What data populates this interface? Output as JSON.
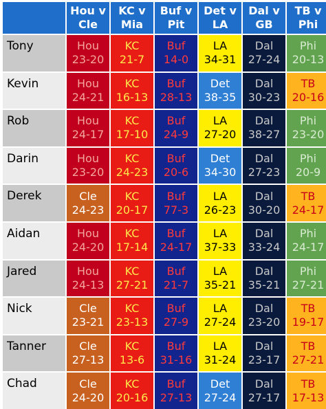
{
  "colors": {
    "header": "#1f6ec9",
    "Hou": {
      "bg": "#c0001d",
      "fg": "#f4a69b"
    },
    "Cle": {
      "bg": "#c8611f",
      "fg": "#ffffff"
    },
    "KC": {
      "bg": "#e81c14",
      "fg": "#ffe84d"
    },
    "Buf": {
      "bg": "#12248d",
      "fg": "#ff3b3b"
    },
    "LA": {
      "bg": "#ffee00",
      "fg": "#000000"
    },
    "Det": {
      "bg": "#2f7fd4",
      "fg": "#ffffff"
    },
    "Dal": {
      "bg": "#0a1a3d",
      "fg": "#c8c8c8"
    },
    "Phi": {
      "bg": "#62a34f",
      "fg": "#d9ebd2"
    },
    "TB": {
      "bg": "#ffb41f",
      "fg": "#c8001a"
    }
  },
  "headers": [
    "Hou v\nCle",
    "KC v\nMia",
    "Buf v\nPit",
    "Det v\nLA",
    "Dal v\nGB",
    "TB v\nPhi"
  ],
  "rows": [
    {
      "name": "Tony",
      "picks": [
        {
          "team": "Hou",
          "score": "23-20"
        },
        {
          "team": "KC",
          "score": "21-7"
        },
        {
          "team": "Buf",
          "score": "14-0"
        },
        {
          "team": "LA",
          "score": "34-31"
        },
        {
          "team": "Dal",
          "score": "27-24"
        },
        {
          "team": "Phi",
          "score": "20-13"
        }
      ]
    },
    {
      "name": "Kevin",
      "picks": [
        {
          "team": "Hou",
          "score": "24-21"
        },
        {
          "team": "KC",
          "score": "16-13"
        },
        {
          "team": "Buf",
          "score": "28-13"
        },
        {
          "team": "Det",
          "score": "38-35"
        },
        {
          "team": "Dal",
          "score": "30-23"
        },
        {
          "team": "TB",
          "score": "20-16"
        }
      ]
    },
    {
      "name": "Rob",
      "picks": [
        {
          "team": "Hou",
          "score": "24-17"
        },
        {
          "team": "KC",
          "score": "17-10"
        },
        {
          "team": "Buf",
          "score": "24-9"
        },
        {
          "team": "LA",
          "score": "27-20"
        },
        {
          "team": "Dal",
          "score": "38-27"
        },
        {
          "team": "Phi",
          "score": "23-20"
        }
      ]
    },
    {
      "name": "Darin",
      "picks": [
        {
          "team": "Hou",
          "score": "23-20"
        },
        {
          "team": "KC",
          "score": "24-23"
        },
        {
          "team": "Buf",
          "score": "20-6"
        },
        {
          "team": "Det",
          "score": "34-30"
        },
        {
          "team": "Dal",
          "score": "27-23"
        },
        {
          "team": "Phi",
          "score": "20-9"
        }
      ]
    },
    {
      "name": "Derek",
      "picks": [
        {
          "team": "Cle",
          "score": "24-23"
        },
        {
          "team": "KC",
          "score": "20-17"
        },
        {
          "team": "Buf",
          "score": "77-3"
        },
        {
          "team": "LA",
          "score": "26-23"
        },
        {
          "team": "Dal",
          "score": "30-20"
        },
        {
          "team": "TB",
          "score": "24-17"
        }
      ]
    },
    {
      "name": "Aidan",
      "picks": [
        {
          "team": "Hou",
          "score": "24-20"
        },
        {
          "team": "KC",
          "score": "17-14"
        },
        {
          "team": "Buf",
          "score": "24-17"
        },
        {
          "team": "LA",
          "score": "37-33"
        },
        {
          "team": "Dal",
          "score": "33-24"
        },
        {
          "team": "Phi",
          "score": "24-17"
        }
      ]
    },
    {
      "name": "Jared",
      "picks": [
        {
          "team": "Hou",
          "score": "24-13"
        },
        {
          "team": "KC",
          "score": "27-21"
        },
        {
          "team": "Buf",
          "score": "21-7"
        },
        {
          "team": "LA",
          "score": "35-21"
        },
        {
          "team": "Dal",
          "score": "35-21"
        },
        {
          "team": "Phi",
          "score": "27-21"
        }
      ]
    },
    {
      "name": "Nick",
      "picks": [
        {
          "team": "Cle",
          "score": "23-21"
        },
        {
          "team": "KC",
          "score": "23-13"
        },
        {
          "team": "Buf",
          "score": "27-9"
        },
        {
          "team": "LA",
          "score": "27-24"
        },
        {
          "team": "Dal",
          "score": "23-20"
        },
        {
          "team": "TB",
          "score": "19-17"
        }
      ]
    },
    {
      "name": "Tanner",
      "picks": [
        {
          "team": "Cle",
          "score": "27-13"
        },
        {
          "team": "KC",
          "score": "13-6"
        },
        {
          "team": "Buf",
          "score": "31-16"
        },
        {
          "team": "LA",
          "score": "31-24"
        },
        {
          "team": "Dal",
          "score": "23-17"
        },
        {
          "team": "TB",
          "score": "27-21"
        }
      ]
    },
    {
      "name": "Chad",
      "picks": [
        {
          "team": "Cle",
          "score": "24-20"
        },
        {
          "team": "KC",
          "score": "20-16"
        },
        {
          "team": "Buf",
          "score": "27-13"
        },
        {
          "team": "Det",
          "score": "27-24"
        },
        {
          "team": "Dal",
          "score": "27-17"
        },
        {
          "team": "TB",
          "score": "17-13"
        }
      ]
    }
  ]
}
